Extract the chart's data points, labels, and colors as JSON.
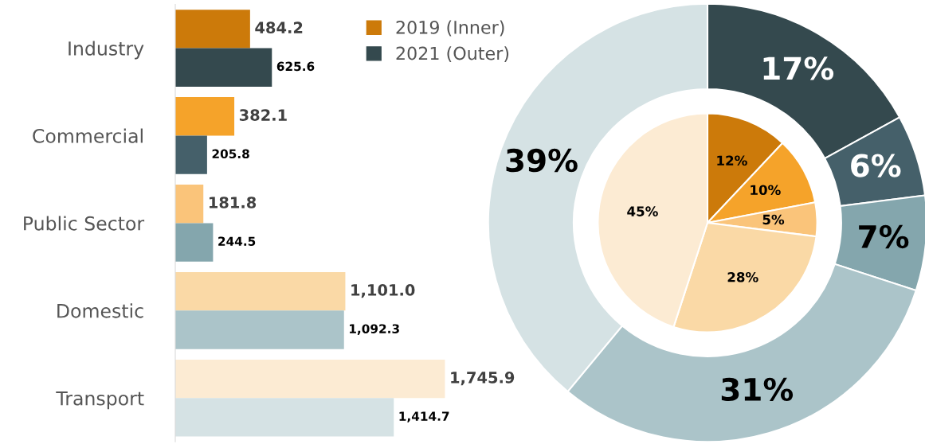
{
  "chart_data": [
    {
      "type": "bar",
      "orientation": "horizontal",
      "categories": [
        "Industry",
        "Commercial",
        "Public Sector",
        "Domestic",
        "Transport"
      ],
      "legend": "top right",
      "series": [
        {
          "name": "2019 (Inner)",
          "color": "#cc7a0a",
          "colors": [
            "#cc7a0a",
            "#f5a32a",
            "#fac47a",
            "#fad9a6",
            "#fcebd3"
          ],
          "values": [
            484.2,
            382.1,
            181.8,
            1101.0,
            1745.9
          ],
          "value_labels": [
            "484.2",
            "382.1",
            "181.8",
            "1,101.0",
            "1,745.9"
          ]
        },
        {
          "name": "2021 (Outer)",
          "color": "#34494e",
          "colors": [
            "#34494e",
            "#45606a",
            "#84a6ad",
            "#abc4c9",
            "#d5e2e4"
          ],
          "values": [
            625.6,
            205.8,
            244.5,
            1092.3,
            1414.7
          ],
          "value_labels": [
            "625.6",
            "205.8",
            "244.5",
            "1,092.3",
            "1,414.7"
          ]
        }
      ]
    },
    {
      "type": "donut",
      "categories": [
        null,
        null,
        null,
        null,
        null
      ],
      "series": [
        {
          "type": "pie",
          "colors": [
            "#cc7a0a",
            "#f5a32a",
            "#fac47a",
            "#fad9a6",
            "#fcebd3"
          ],
          "values": [
            12,
            10,
            5,
            28,
            45
          ],
          "value_labels": [
            "12%",
            "10%",
            "5%",
            "28%",
            "45%"
          ]
        },
        {
          "type": "donut",
          "colors": [
            "#34494e",
            "#45606a",
            "#84a6ad",
            "#abc4c9",
            "#d5e2e4"
          ],
          "values": [
            17,
            6,
            7,
            31,
            39
          ],
          "value_labels": [
            "17%",
            "6%",
            "7%",
            "31%",
            "39%"
          ]
        }
      ]
    }
  ]
}
